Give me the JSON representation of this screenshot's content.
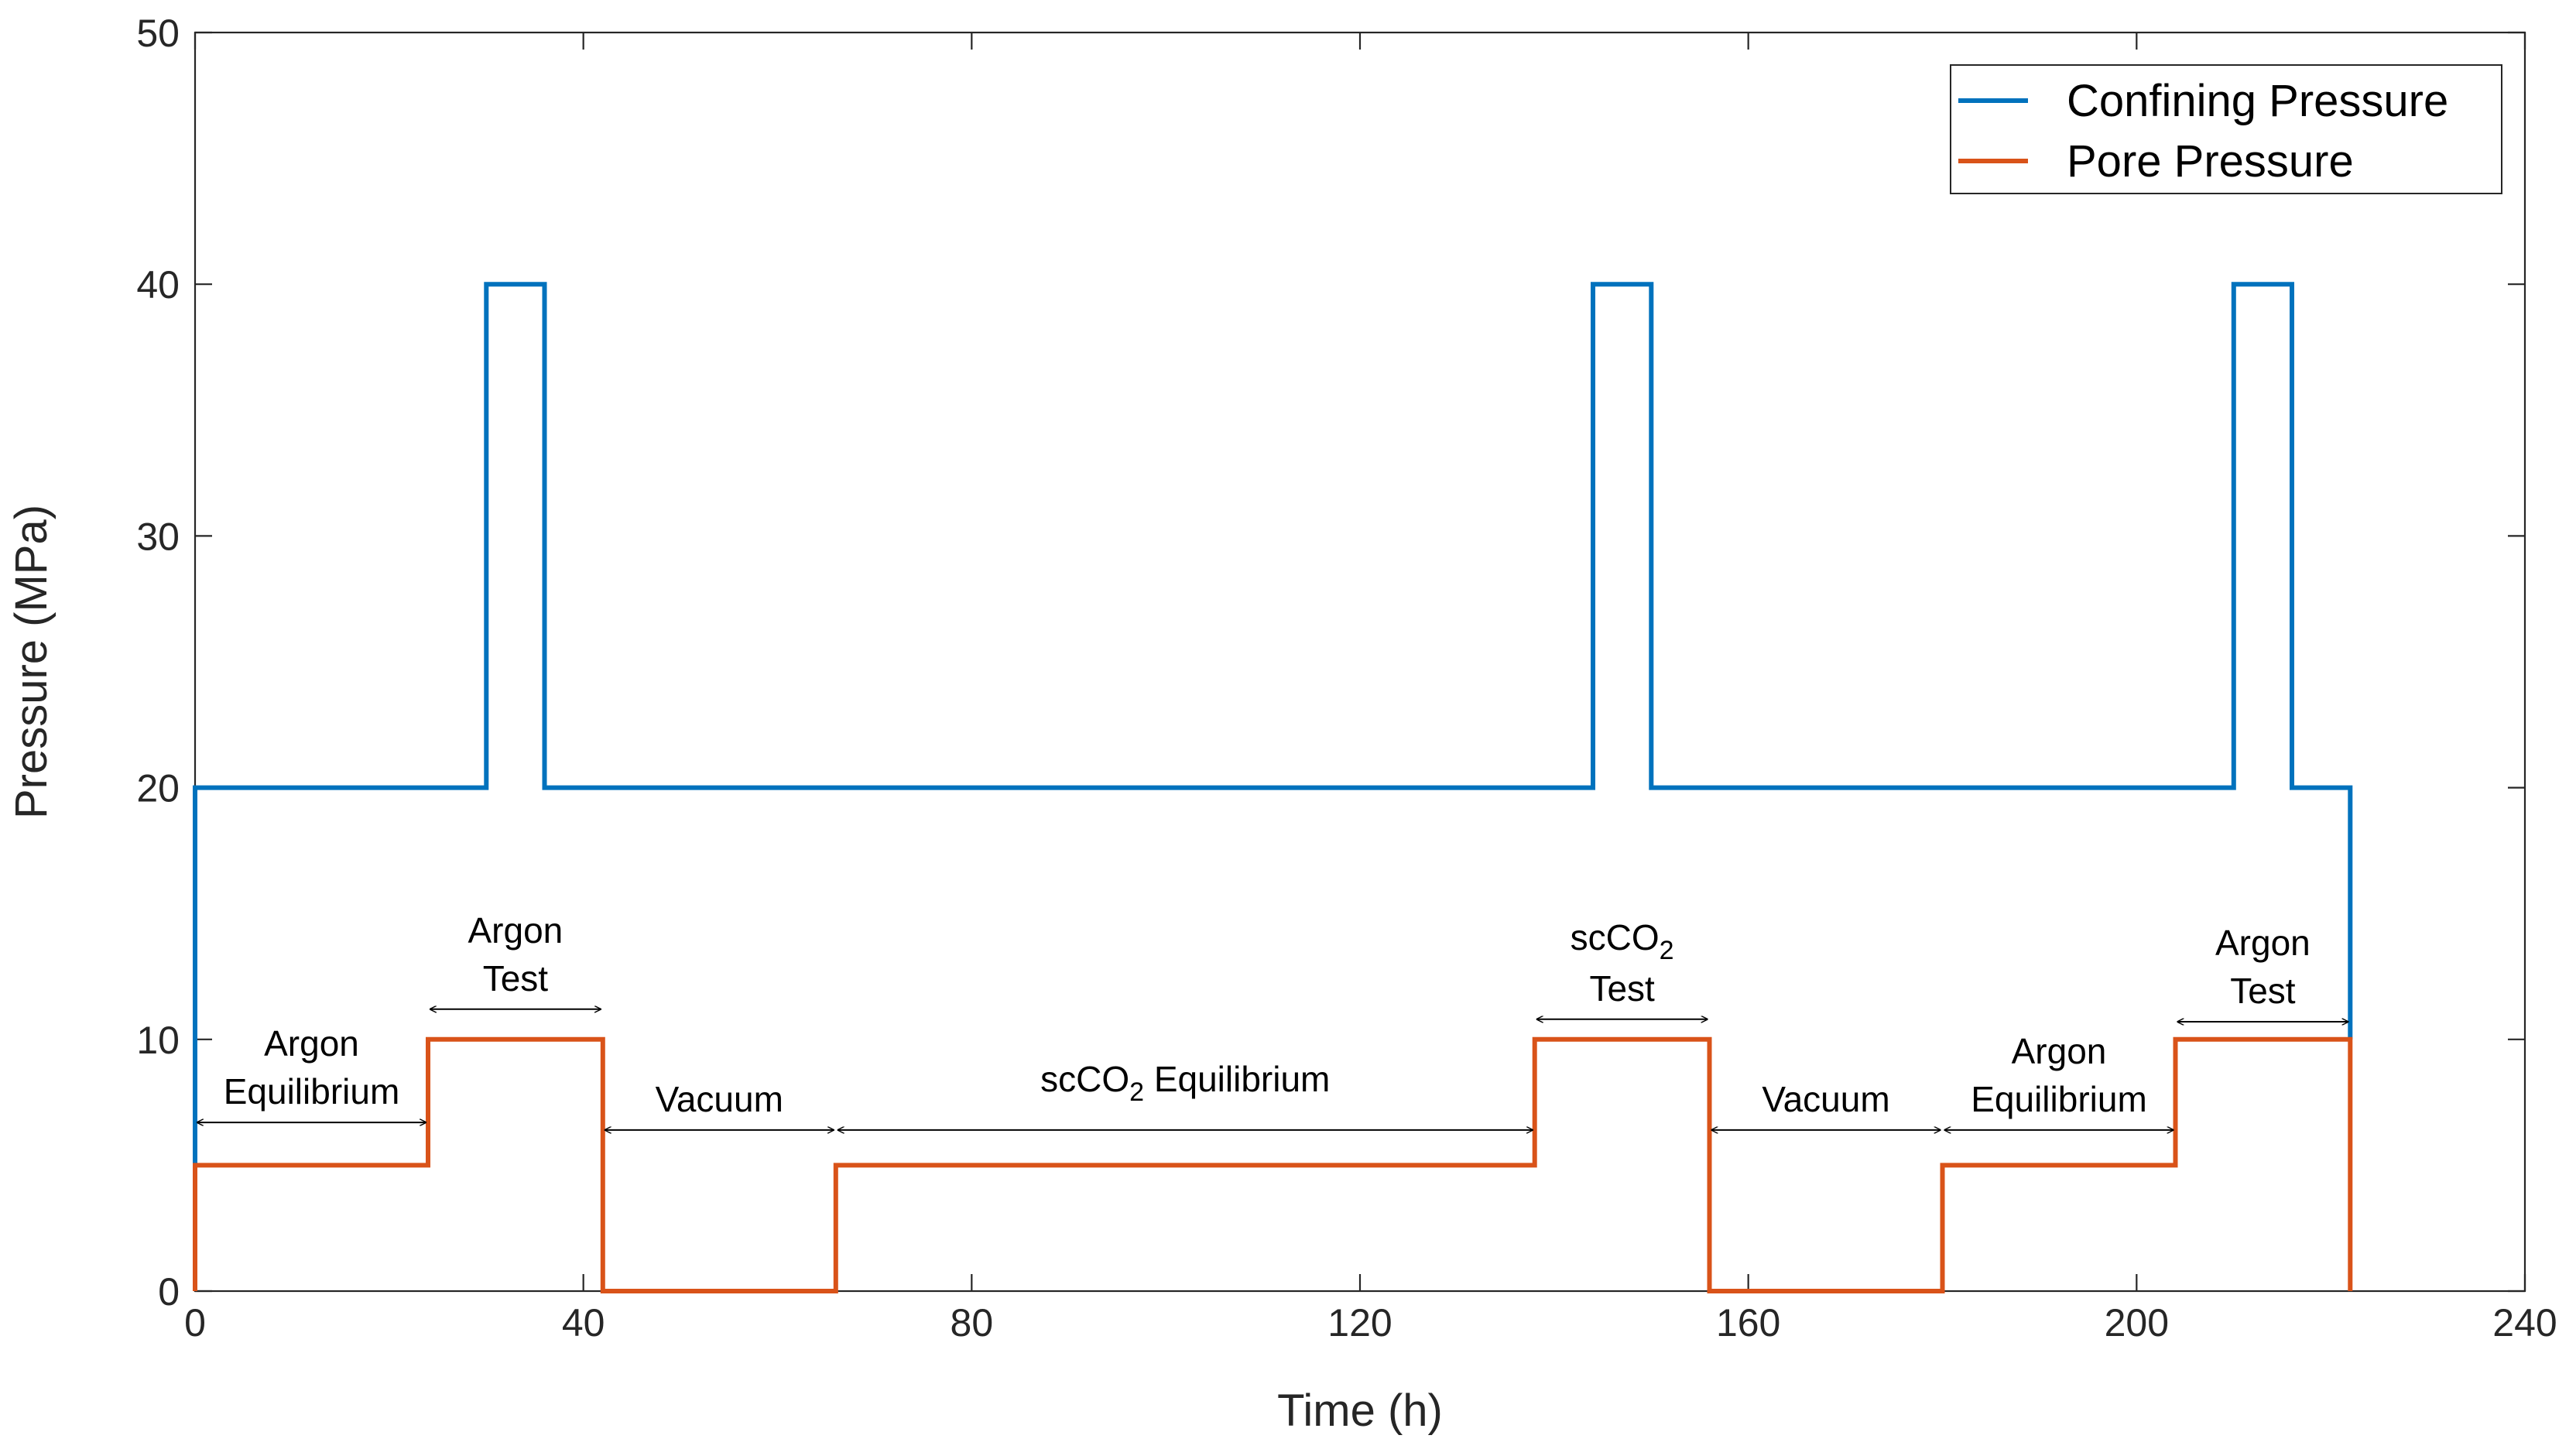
{
  "chart_data": {
    "type": "line",
    "title": "",
    "xlabel": "Time (h)",
    "ylabel": "Pressure (MPa)",
    "xlim": [
      0,
      240
    ],
    "ylim": [
      0,
      50
    ],
    "xticks": [
      0,
      40,
      80,
      120,
      160,
      200,
      240
    ],
    "yticks": [
      0,
      10,
      20,
      30,
      40,
      50
    ],
    "grid": false,
    "legend_position": "top-right",
    "series": [
      {
        "name": "Confining Pressure",
        "color": "#0072BD",
        "x": [
          0,
          0,
          30,
          30,
          36,
          36,
          144,
          144,
          150,
          150,
          210,
          210,
          216,
          216,
          222,
          222
        ],
        "y": [
          0,
          20,
          20,
          40,
          40,
          20,
          20,
          40,
          40,
          20,
          20,
          40,
          40,
          20,
          20,
          10
        ]
      },
      {
        "name": "Pore Pressure",
        "color": "#D95319",
        "x": [
          0,
          0,
          24,
          24,
          42,
          42,
          66,
          66,
          138,
          138,
          156,
          156,
          180,
          180,
          204,
          204,
          222,
          222
        ],
        "y": [
          0,
          5,
          5,
          10,
          10,
          0,
          0,
          5,
          5,
          10,
          10,
          0,
          0,
          5,
          5,
          10,
          10,
          0
        ]
      }
    ],
    "annotations": [
      {
        "lines": [
          "Argon",
          "Equilibrium"
        ],
        "x_start": 0,
        "x_end": 24,
        "arrow_y": 6.7
      },
      {
        "lines": [
          "Argon",
          "Test"
        ],
        "x_start": 24,
        "x_end": 42,
        "arrow_y": 11.2
      },
      {
        "lines": [
          "Vacuum"
        ],
        "x_start": 42,
        "x_end": 66,
        "arrow_y": 6.4
      },
      {
        "lines": [
          "scCO",
          "2",
          " Equilibrium"
        ],
        "x_start": 66,
        "x_end": 138,
        "arrow_y": 6.4
      },
      {
        "lines": [
          "scCO",
          "2",
          "Test"
        ],
        "x_start": 138,
        "x_end": 156,
        "arrow_y": 10.8
      },
      {
        "lines": [
          "Vacuum"
        ],
        "x_start": 156,
        "x_end": 180,
        "arrow_y": 6.4
      },
      {
        "lines": [
          "Argon",
          "Equilibrium"
        ],
        "x_start": 180,
        "x_end": 204,
        "arrow_y": 6.4
      },
      {
        "lines": [
          "Argon",
          "Test"
        ],
        "x_start": 204,
        "x_end": 222,
        "arrow_y": 10.7
      }
    ]
  }
}
